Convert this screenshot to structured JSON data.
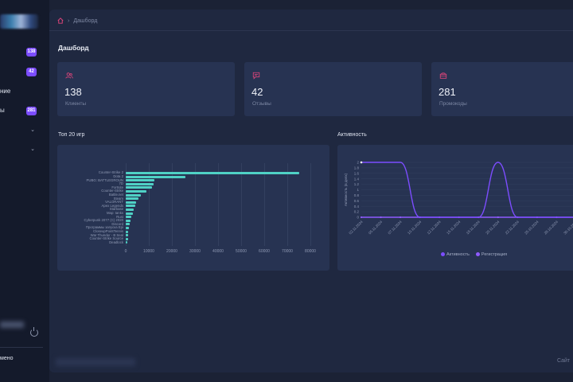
{
  "sidebar": {
    "items": [
      {
        "label": "",
        "badge": "138",
        "chevron": false
      },
      {
        "label": "",
        "badge": "42",
        "chevron": false
      },
      {
        "label": "ние",
        "badge": "",
        "chevron": false
      },
      {
        "label": "ы",
        "badge": "281",
        "chevron": false
      },
      {
        "label": "",
        "badge": "",
        "chevron": true
      },
      {
        "label": "",
        "badge": "",
        "chevron": true
      }
    ],
    "bottom_label": "мено"
  },
  "breadcrumb": {
    "current": "Дашборд"
  },
  "page_title": "Дашборд",
  "cards": [
    {
      "icon": "users-icon",
      "value": "138",
      "label": "Клиенты"
    },
    {
      "icon": "message-icon",
      "value": "42",
      "label": "Отзывы"
    },
    {
      "icon": "ticket-icon",
      "value": "281",
      "label": "Промокоды"
    }
  ],
  "sections": {
    "top_games": "Топ 20 игр",
    "activity": "Активность"
  },
  "footer": {
    "right": "Сайт"
  },
  "chart_data": [
    {
      "type": "bar",
      "orientation": "horizontal",
      "categories": [
        "Counter-Strike 2",
        "Dota 2",
        "PUBG: BATTLEGROUN",
        "7D",
        "Fortnite",
        "Counter-Strike",
        "Battle.net",
        "Steam",
        "VALORANT",
        "Apex Legends",
        "Starbase",
        "Map: tanks",
        "Rust",
        "Cyberpunk 2077 (C) 2020",
        "Discord",
        "Программы запуска Epi",
        "CloseupPointTennis",
        "War Thunder - B Seal",
        "Counter-Strike Source",
        "Deadlock"
      ],
      "values": [
        75000,
        26000,
        12500,
        12000,
        11500,
        9000,
        6500,
        5500,
        4500,
        4000,
        3500,
        3000,
        2500,
        2000,
        1800,
        1500,
        1200,
        1000,
        900,
        800
      ],
      "xlim": [
        0,
        80000
      ],
      "xticks": [
        0,
        10000,
        20000,
        30000,
        40000,
        50000,
        60000,
        70000,
        80000
      ],
      "colors": [
        "#4fd1c5"
      ]
    },
    {
      "type": "line",
      "x": [
        "02.11.2024",
        "05.11.2024",
        "07.11.2024",
        "10.11.2024",
        "12.11.2024",
        "15.11.2024",
        "18.11.2024",
        "20.11.2024",
        "22.11.2024",
        "25.10.2024",
        "28.10.2024",
        "30.10.2024"
      ],
      "ylabel": "Активность (в днях)",
      "ylim": [
        0,
        2
      ],
      "yticks": [
        0,
        0.2,
        0.4,
        0.6,
        0.8,
        1,
        1.2,
        1.4,
        1.6,
        1.8,
        2
      ],
      "series": [
        {
          "name": "Активность",
          "values": [
            2,
            2,
            2,
            0,
            0,
            0,
            0,
            2,
            0,
            0,
            0,
            0
          ],
          "color": "#7c4dff"
        },
        {
          "name": "Регистрация",
          "values": [
            0,
            0,
            0,
            0,
            0,
            0,
            0,
            0,
            0,
            0,
            0,
            0
          ],
          "color": "#8f5bff"
        }
      ]
    }
  ]
}
